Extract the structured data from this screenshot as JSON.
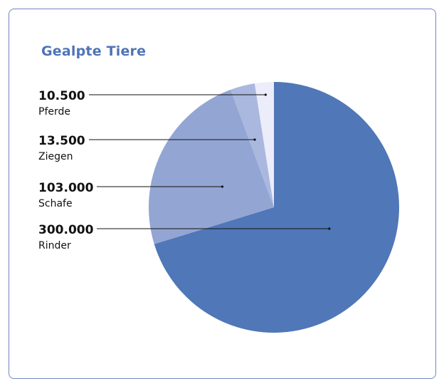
{
  "chart_data": {
    "type": "pie",
    "title": "Gealpte Tiere",
    "slices": [
      {
        "label": "Rinder",
        "value": 300000,
        "value_text": "300.000",
        "color": "#5077b7"
      },
      {
        "label": "Schafe",
        "value": 103000,
        "value_text": "103.000",
        "color": "#93a5d3"
      },
      {
        "label": "Ziegen",
        "value": 13500,
        "value_text": "13.500",
        "color": "#aab7de"
      },
      {
        "label": "Pferde",
        "value": 10500,
        "value_text": "10.500",
        "color": "#ecedfa"
      }
    ],
    "legend": "left, callout lines"
  }
}
